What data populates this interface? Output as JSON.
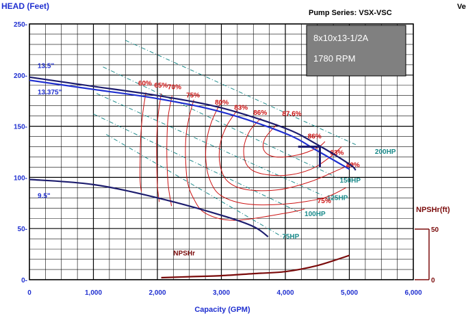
{
  "chart_data": {
    "type": "line",
    "ylabel": "HEAD (Feet)",
    "xlabel": "Capacity (GPM)",
    "series_title": "Pump Series: VSX-VSC",
    "edge_text": "Ve",
    "info_box": {
      "model": "8x10x13-1/2A",
      "speed": "1780 RPM",
      "bg_color": "#808080",
      "text_color": "#ffffff"
    },
    "xlim": [
      0,
      6000
    ],
    "ylim": [
      0,
      250
    ],
    "x_ticks": [
      {
        "v": 0,
        "label": "0"
      },
      {
        "v": 1000,
        "label": "1,000"
      },
      {
        "v": 2000,
        "label": "2,000"
      },
      {
        "v": 3000,
        "label": "3,000"
      },
      {
        "v": 4000,
        "label": "4,000"
      },
      {
        "v": 5000,
        "label": "5,000"
      },
      {
        "v": 6000,
        "label": "6,000"
      }
    ],
    "y_ticks": [
      {
        "v": 0,
        "label": "0-"
      },
      {
        "v": 50,
        "label": "50-"
      },
      {
        "v": 100,
        "label": "100-"
      },
      {
        "v": 150,
        "label": "150-"
      },
      {
        "v": 200,
        "label": "200-"
      },
      {
        "v": 250,
        "label": "250-"
      }
    ],
    "npsh_axis": {
      "label": "NPSHr(ft)",
      "min": 0,
      "max": 50,
      "ticks": [
        {
          "v": 0,
          "label": "0"
        },
        {
          "v": 50,
          "label": "50"
        }
      ]
    },
    "colors": {
      "impeller": "#1c1c6e",
      "trim": "#1f2fd0",
      "efficiency": "#cc1111",
      "hp": "#1a8a8a",
      "npsh": "#7a0a0a",
      "grid": "#000000"
    },
    "impeller_curves": [
      {
        "name": "13.5\"",
        "label_x": 130,
        "label_y": 207,
        "points": [
          [
            0,
            198
          ],
          [
            1000,
            189
          ],
          [
            2000,
            180
          ],
          [
            3000,
            168
          ],
          [
            4000,
            148
          ],
          [
            4500,
            132
          ],
          [
            5000,
            113
          ],
          [
            5100,
            107
          ]
        ]
      },
      {
        "name": "13.375\"",
        "label_x": 130,
        "label_y": 181,
        "points": [
          [
            0,
            195
          ],
          [
            1000,
            186
          ],
          [
            2000,
            177
          ],
          [
            3000,
            164
          ],
          [
            4000,
            143
          ],
          [
            4500,
            126
          ],
          [
            5000,
            108
          ]
        ]
      },
      {
        "name": "9.5\"",
        "label_x": 130,
        "label_y": 80,
        "points": [
          [
            0,
            98
          ],
          [
            1000,
            93
          ],
          [
            2000,
            80
          ],
          [
            3000,
            63
          ],
          [
            3500,
            52
          ],
          [
            3730,
            42
          ]
        ]
      }
    ],
    "hp_lines": [
      {
        "name": "75HP",
        "x1": 1200,
        "y1": 142,
        "x2": 3950,
        "y2": 42,
        "label_x": 3950,
        "label_y": 40
      },
      {
        "name": "100HP",
        "x1": 1000,
        "y1": 162,
        "x2": 4250,
        "y2": 65,
        "label_x": 4300,
        "label_y": 62
      },
      {
        "name": "125HP",
        "x1": 1050,
        "y1": 182,
        "x2": 4600,
        "y2": 82,
        "label_x": 4650,
        "label_y": 78
      },
      {
        "name": "150HP",
        "x1": 1150,
        "y1": 208,
        "x2": 4800,
        "y2": 100,
        "label_x": 4850,
        "label_y": 95
      },
      {
        "name": "200HP",
        "x1": 1500,
        "y1": 234,
        "x2": 5100,
        "y2": 132,
        "label_x": 5400,
        "label_y": 123
      }
    ],
    "efficiency_contours": [
      {
        "name": "60%",
        "label_x": 1700,
        "label_y": 190,
        "points": [
          [
            1820,
            183
          ],
          [
            1770,
            162
          ],
          [
            1740,
            140
          ],
          [
            1730,
            118
          ],
          [
            1730,
            96
          ],
          [
            1750,
            86
          ]
        ]
      },
      {
        "name": "65%",
        "label_x": 1950,
        "label_y": 188,
        "points": [
          [
            2060,
            182
          ],
          [
            2010,
            160
          ],
          [
            1990,
            138
          ],
          [
            1990,
            116
          ],
          [
            2000,
            92
          ],
          [
            2030,
            76
          ]
        ]
      },
      {
        "name": "70%",
        "label_x": 2160,
        "label_y": 186,
        "points": [
          [
            2230,
            180
          ],
          [
            2170,
            160
          ],
          [
            2150,
            138
          ],
          [
            2150,
            115
          ],
          [
            2170,
            92
          ],
          [
            2220,
            72
          ]
        ]
      },
      {
        "name": "75%",
        "label_x": 2450,
        "label_y": 178,
        "points": [
          [
            2570,
            176
          ],
          [
            2500,
            160
          ],
          [
            2450,
            142
          ],
          [
            2440,
            120
          ],
          [
            2470,
            96
          ],
          [
            2560,
            80
          ],
          [
            2750,
            65
          ],
          [
            3200,
            58
          ],
          [
            4000,
            65
          ],
          [
            4300,
            69
          ]
        ]
      },
      {
        "name": "80%",
        "label_x": 2900,
        "label_y": 171,
        "points": [
          [
            2980,
            172
          ],
          [
            2850,
            155
          ],
          [
            2770,
            136
          ],
          [
            2760,
            115
          ],
          [
            2830,
            96
          ],
          [
            3000,
            82
          ],
          [
            3400,
            74
          ],
          [
            4000,
            74
          ],
          [
            4600,
            80
          ],
          [
            4950,
            90
          ]
        ]
      },
      {
        "name": "83%",
        "label_x": 3200,
        "label_y": 166,
        "points": [
          [
            3250,
            166
          ],
          [
            3080,
            150
          ],
          [
            2980,
            132
          ],
          [
            2980,
            112
          ],
          [
            3100,
            96
          ],
          [
            3400,
            88
          ],
          [
            3900,
            88
          ],
          [
            4400,
            96
          ],
          [
            4850,
            108
          ],
          [
            5050,
            113
          ]
        ]
      },
      {
        "name": "86%",
        "label_x": 3500,
        "label_y": 161,
        "points": [
          [
            3620,
            158
          ],
          [
            3440,
            145
          ],
          [
            3350,
            128
          ],
          [
            3400,
            112
          ],
          [
            3600,
            104
          ],
          [
            4000,
            102
          ],
          [
            4400,
            108
          ],
          [
            4700,
            120
          ],
          [
            4880,
            130
          ]
        ]
      },
      {
        "name": "87.6%",
        "label_x": 3950,
        "label_y": 160,
        "points": [
          [
            3870,
            152
          ],
          [
            3680,
            138
          ],
          [
            3670,
            126
          ],
          [
            3850,
            120
          ],
          [
            4200,
            122
          ],
          [
            4500,
            129
          ],
          [
            4620,
            135
          ]
        ]
      }
    ],
    "efficiency_labels": [
      {
        "name": "86%",
        "x": 4350,
        "y": 138
      },
      {
        "name": "83%",
        "x": 4700,
        "y": 122
      },
      {
        "name": "80%",
        "x": 4950,
        "y": 110
      },
      {
        "name": "75%",
        "x": 4500,
        "y": 75
      }
    ],
    "operating_point": {
      "flow": 4540,
      "head": 130,
      "h_start": 4200,
      "v_end": 110
    },
    "npsh_curve": {
      "name": "NPSHr",
      "label_x": 2250,
      "label_y": 24,
      "points": [
        [
          2060,
          2
        ],
        [
          2500,
          3
        ],
        [
          3000,
          4
        ],
        [
          3500,
          6
        ],
        [
          4000,
          8
        ],
        [
          4500,
          14
        ],
        [
          5000,
          24
        ]
      ]
    }
  }
}
